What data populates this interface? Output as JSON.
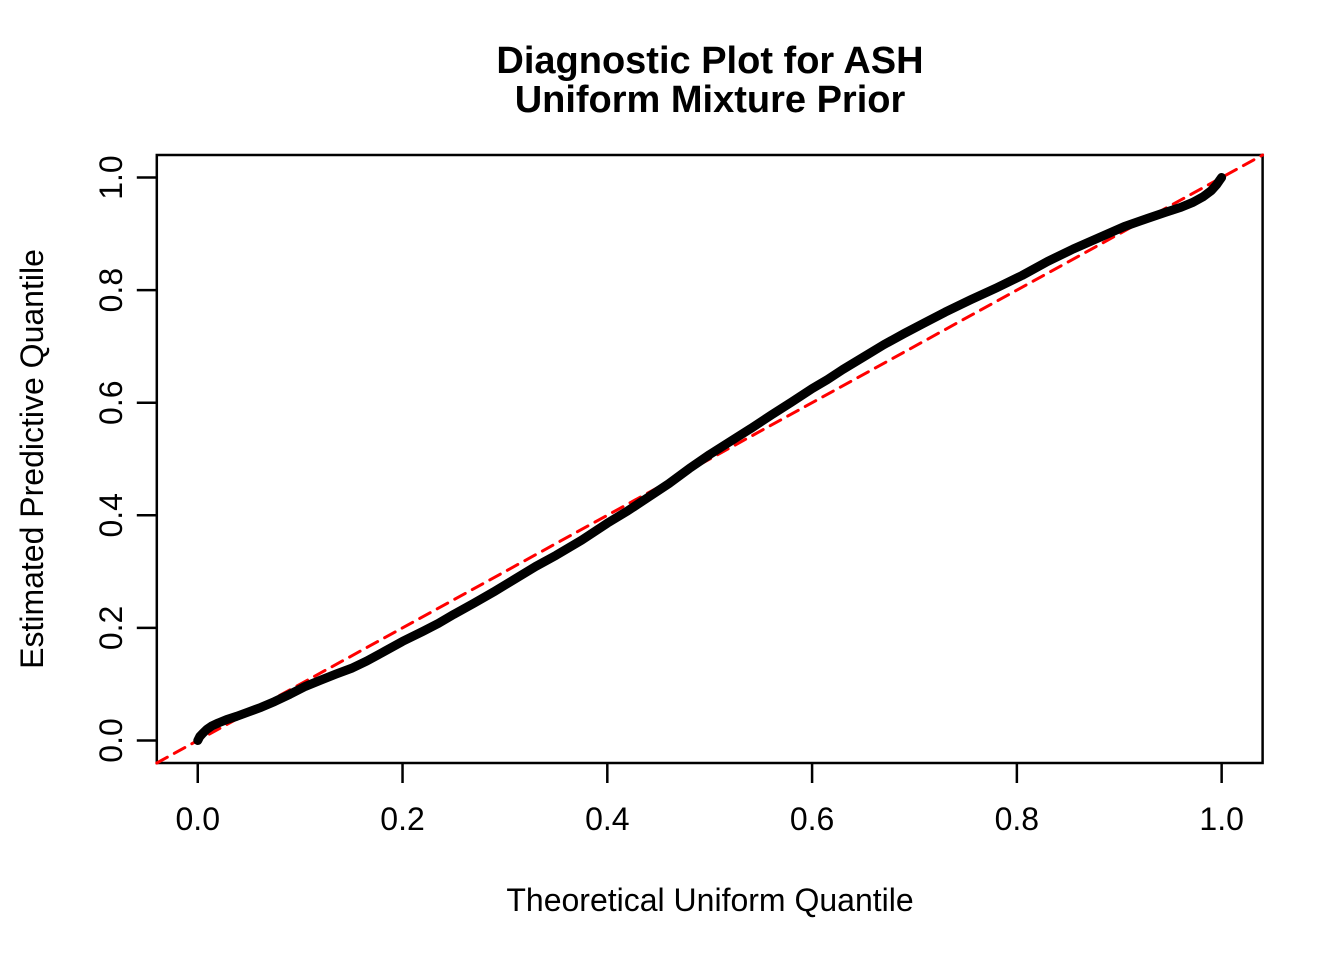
{
  "figure": {
    "background_color": "#FFFFFF",
    "text_color": "#000000"
  },
  "chart_data": {
    "type": "line",
    "title": "Diagnostic Plot for ASH",
    "subtitle": "Uniform Mixture Prior",
    "xlabel": "Theoretical Uniform Quantile",
    "ylabel": "Estimated Predictive Quantile",
    "xlim": [
      -0.04,
      1.04
    ],
    "ylim": [
      -0.04,
      1.04
    ],
    "grid": false,
    "legend_position": "none",
    "x_ticks": [
      0.0,
      0.2,
      0.4,
      0.6,
      0.8,
      1.0
    ],
    "y_ticks": [
      0.0,
      0.2,
      0.4,
      0.6,
      0.8,
      1.0
    ],
    "x_tick_labels": [
      "0.0",
      "0.2",
      "0.4",
      "0.6",
      "0.8",
      "1.0"
    ],
    "y_tick_labels": [
      "0.0",
      "0.2",
      "0.4",
      "0.6",
      "0.8",
      "1.0"
    ],
    "series": [
      {
        "name": "estimated-predictive-quantile-curve",
        "color": "#000000",
        "line_width": 9,
        "dash": null,
        "points": [
          [
            0.0,
            0.0
          ],
          [
            0.002,
            0.007
          ],
          [
            0.005,
            0.013
          ],
          [
            0.009,
            0.02
          ],
          [
            0.014,
            0.026
          ],
          [
            0.02,
            0.031
          ],
          [
            0.028,
            0.037
          ],
          [
            0.038,
            0.043
          ],
          [
            0.05,
            0.051
          ],
          [
            0.062,
            0.059
          ],
          [
            0.075,
            0.069
          ],
          [
            0.09,
            0.082
          ],
          [
            0.105,
            0.096
          ],
          [
            0.12,
            0.107
          ],
          [
            0.135,
            0.118
          ],
          [
            0.15,
            0.128
          ],
          [
            0.165,
            0.141
          ],
          [
            0.18,
            0.156
          ],
          [
            0.2,
            0.176
          ],
          [
            0.22,
            0.194
          ],
          [
            0.235,
            0.208
          ],
          [
            0.25,
            0.224
          ],
          [
            0.27,
            0.244
          ],
          [
            0.29,
            0.265
          ],
          [
            0.31,
            0.287
          ],
          [
            0.33,
            0.309
          ],
          [
            0.35,
            0.329
          ],
          [
            0.375,
            0.356
          ],
          [
            0.4,
            0.386
          ],
          [
            0.42,
            0.408
          ],
          [
            0.44,
            0.432
          ],
          [
            0.46,
            0.456
          ],
          [
            0.48,
            0.483
          ],
          [
            0.5,
            0.508
          ],
          [
            0.52,
            0.531
          ],
          [
            0.54,
            0.554
          ],
          [
            0.56,
            0.578
          ],
          [
            0.58,
            0.601
          ],
          [
            0.6,
            0.625
          ],
          [
            0.615,
            0.641
          ],
          [
            0.63,
            0.659
          ],
          [
            0.65,
            0.681
          ],
          [
            0.67,
            0.703
          ],
          [
            0.69,
            0.723
          ],
          [
            0.71,
            0.742
          ],
          [
            0.73,
            0.761
          ],
          [
            0.755,
            0.783
          ],
          [
            0.78,
            0.804
          ],
          [
            0.805,
            0.826
          ],
          [
            0.83,
            0.851
          ],
          [
            0.855,
            0.873
          ],
          [
            0.88,
            0.893
          ],
          [
            0.905,
            0.913
          ],
          [
            0.927,
            0.927
          ],
          [
            0.945,
            0.938
          ],
          [
            0.96,
            0.947
          ],
          [
            0.972,
            0.956
          ],
          [
            0.982,
            0.966
          ],
          [
            0.99,
            0.977
          ],
          [
            0.995,
            0.987
          ],
          [
            0.998,
            0.995
          ],
          [
            1.0,
            1.0
          ]
        ]
      },
      {
        "name": "reference-diagonal",
        "color": "#FF0000",
        "line_width": 3,
        "dash": "12 8",
        "points": [
          [
            -0.04,
            -0.04
          ],
          [
            1.04,
            1.04
          ]
        ]
      }
    ]
  }
}
